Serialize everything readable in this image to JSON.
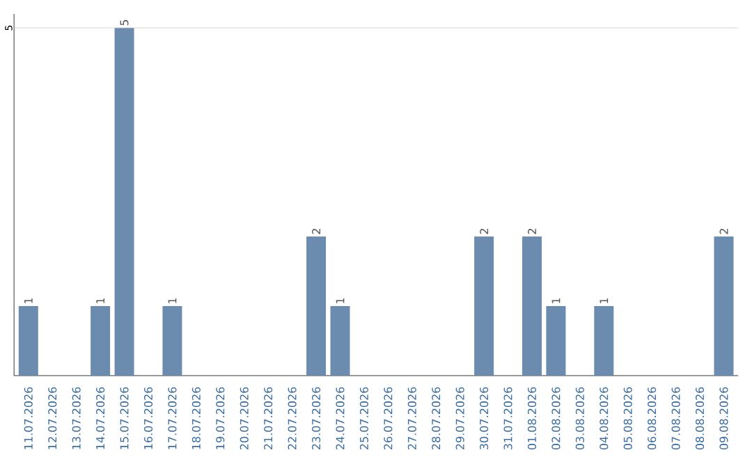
{
  "chart_data": {
    "type": "bar",
    "categories": [
      "11.07.2026",
      "12.07.2026",
      "13.07.2026",
      "14.07.2026",
      "15.07.2026",
      "16.07.2026",
      "17.07.2026",
      "18.07.2026",
      "19.07.2026",
      "20.07.2026",
      "21.07.2026",
      "22.07.2026",
      "23.07.2026",
      "24.07.2026",
      "25.07.2026",
      "26.07.2026",
      "27.07.2026",
      "28.07.2026",
      "29.07.2026",
      "30.07.2026",
      "31.07.2026",
      "01.08.2026",
      "02.08.2026",
      "03.08.2026",
      "04.08.2026",
      "05.08.2026",
      "06.08.2026",
      "07.08.2026",
      "08.08.2026",
      "09.08.2026"
    ],
    "values": [
      1,
      0,
      0,
      1,
      5,
      0,
      1,
      0,
      0,
      0,
      0,
      0,
      2,
      1,
      0,
      0,
      0,
      0,
      0,
      2,
      0,
      2,
      1,
      0,
      1,
      0,
      0,
      0,
      0,
      2
    ],
    "value_labels": [
      "1",
      null,
      null,
      "1",
      "5",
      null,
      "1",
      null,
      null,
      null,
      null,
      null,
      "2",
      "1",
      null,
      null,
      null,
      null,
      null,
      "2",
      null,
      "2",
      "1",
      null,
      "1",
      null,
      null,
      null,
      null,
      "2"
    ],
    "color": "#6b8cae",
    "ylim": [
      0,
      5.2
    ],
    "ref_lines": [
      {
        "axis": "y",
        "value": 5,
        "label": "5",
        "color": "#cccccc"
      }
    ]
  }
}
